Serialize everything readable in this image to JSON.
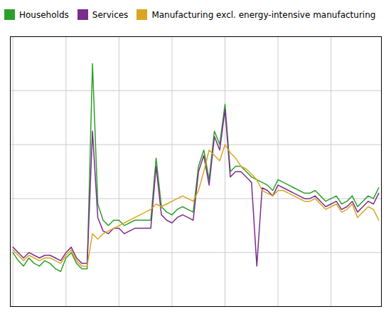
{
  "chart_data": {
    "type": "line",
    "x": [
      0,
      1,
      2,
      3,
      4,
      5,
      6,
      7,
      8,
      9,
      10,
      11,
      12,
      13,
      14,
      15,
      16,
      17,
      18,
      19,
      20,
      21,
      22,
      23,
      24,
      25,
      26,
      27,
      28,
      29,
      30,
      31,
      32,
      33,
      34,
      35,
      36,
      37,
      38,
      39,
      40,
      41,
      42,
      43,
      44,
      45,
      46,
      47,
      48,
      49,
      50,
      51,
      52,
      53,
      54,
      55,
      56,
      57,
      58,
      59,
      60,
      61,
      62,
      63,
      64,
      65,
      66,
      67,
      68,
      69
    ],
    "series": [
      {
        "name": "Households",
        "color": "#2ca02c",
        "values": [
          20,
          17,
          15,
          18,
          16,
          15,
          17,
          16,
          14,
          13,
          18,
          20,
          16,
          14,
          14,
          90,
          38,
          32,
          30,
          32,
          32,
          30,
          31,
          32,
          32,
          32,
          32,
          55,
          37,
          35,
          34,
          36,
          37,
          36,
          35,
          52,
          58,
          47,
          65,
          60,
          75,
          50,
          52,
          52,
          50,
          48,
          47,
          46,
          45,
          43,
          47,
          46,
          45,
          44,
          43,
          42,
          42,
          43,
          41,
          39,
          40,
          41,
          38,
          39,
          41,
          37,
          39,
          41,
          40,
          44
        ]
      },
      {
        "name": "Services",
        "color": "#7B2D8B",
        "values": [
          22,
          20,
          18,
          20,
          19,
          18,
          19,
          19,
          18,
          17,
          20,
          22,
          18,
          16,
          16,
          65,
          33,
          28,
          27,
          29,
          29,
          27,
          28,
          29,
          29,
          29,
          29,
          52,
          34,
          32,
          31,
          33,
          34,
          33,
          32,
          50,
          56,
          45,
          63,
          58,
          73,
          48,
          50,
          50,
          48,
          46,
          15,
          44,
          43,
          41,
          45,
          44,
          43,
          42,
          41,
          40,
          40,
          41,
          39,
          37,
          38,
          39,
          36,
          37,
          39,
          35,
          37,
          39,
          38,
          42
        ]
      },
      {
        "name": "Manufacturing excl. energy-intensive manufacturing",
        "color": "#DAA520",
        "values": [
          21,
          19,
          17,
          19,
          18,
          17,
          18,
          18,
          17,
          16,
          19,
          21,
          17,
          15,
          15,
          27,
          25,
          27,
          28,
          29,
          30,
          31,
          32,
          33,
          34,
          35,
          36,
          38,
          37,
          38,
          39,
          40,
          41,
          40,
          39,
          43,
          50,
          58,
          56,
          54,
          60,
          57,
          55,
          52,
          51,
          49,
          47,
          43,
          42,
          41,
          43,
          43,
          42,
          41,
          40,
          39,
          39,
          40,
          38,
          36,
          37,
          38,
          35,
          36,
          38,
          33,
          35,
          37,
          36,
          32
        ]
      }
    ],
    "xlim": [
      -0.5,
      69.5
    ],
    "xticks": [
      0,
      10,
      20,
      30,
      40,
      50,
      60
    ],
    "ylim": [
      0,
      100
    ],
    "yticks": [
      0,
      20,
      40,
      60,
      80,
      100
    ],
    "grid": true,
    "legend": "upper left",
    "tick_labels": false
  }
}
